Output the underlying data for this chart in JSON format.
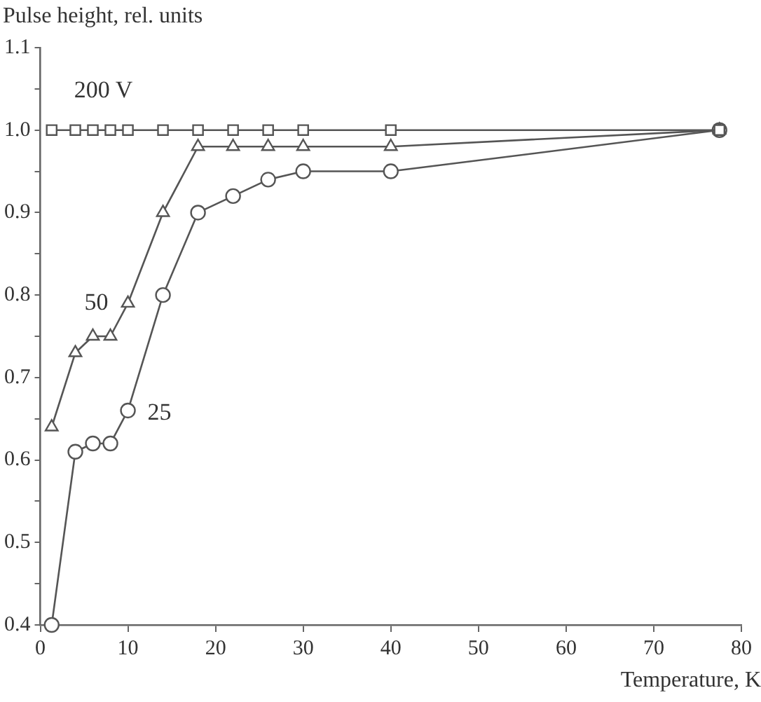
{
  "chart_data": {
    "type": "line",
    "xlabel": "Temperature, K",
    "ylabel": "Pulse height, rel. units",
    "xlim": [
      0,
      80
    ],
    "xticks": [
      0,
      10,
      20,
      30,
      40,
      50,
      60,
      70,
      80
    ],
    "ylim": [
      0.4,
      1.1
    ],
    "yticks": [
      0.4,
      {
        "value": 0.45,
        "label": null
      },
      0.5,
      {
        "value": 0.55,
        "label": null
      },
      0.6,
      {
        "value": 0.65,
        "label": null
      },
      0.7,
      {
        "value": 0.75,
        "label": null
      },
      0.8,
      {
        "value": 0.85,
        "label": null
      },
      0.9,
      {
        "value": 0.95,
        "label": null
      },
      {
        "value": 1.0,
        "label": "1.0"
      },
      {
        "value": 1.05,
        "label": null
      },
      1.1
    ],
    "grid": false,
    "legend": false,
    "line_style": "solid",
    "x": [
      1.3,
      4,
      6,
      8,
      10,
      14,
      18,
      22,
      26,
      30,
      40,
      77.5
    ],
    "series": [
      {
        "name": "200 V",
        "color": "#555555",
        "marker": "square",
        "values": [
          1.0,
          1.0,
          1.0,
          1.0,
          1.0,
          1.0,
          1.0,
          1.0,
          1.0,
          1.0,
          1.0,
          1.0
        ]
      },
      {
        "name": "50",
        "color": "#555555",
        "marker": "triangle",
        "values": [
          0.64,
          0.73,
          0.75,
          0.75,
          0.79,
          0.9,
          0.98,
          0.98,
          0.98,
          0.98,
          0.98,
          1.0
        ]
      },
      {
        "name": "25",
        "color": "#555555",
        "marker": "circle",
        "values": [
          0.4,
          0.61,
          0.62,
          0.62,
          0.66,
          0.8,
          0.9,
          0.92,
          0.94,
          0.95,
          0.95,
          1.0
        ]
      }
    ]
  }
}
